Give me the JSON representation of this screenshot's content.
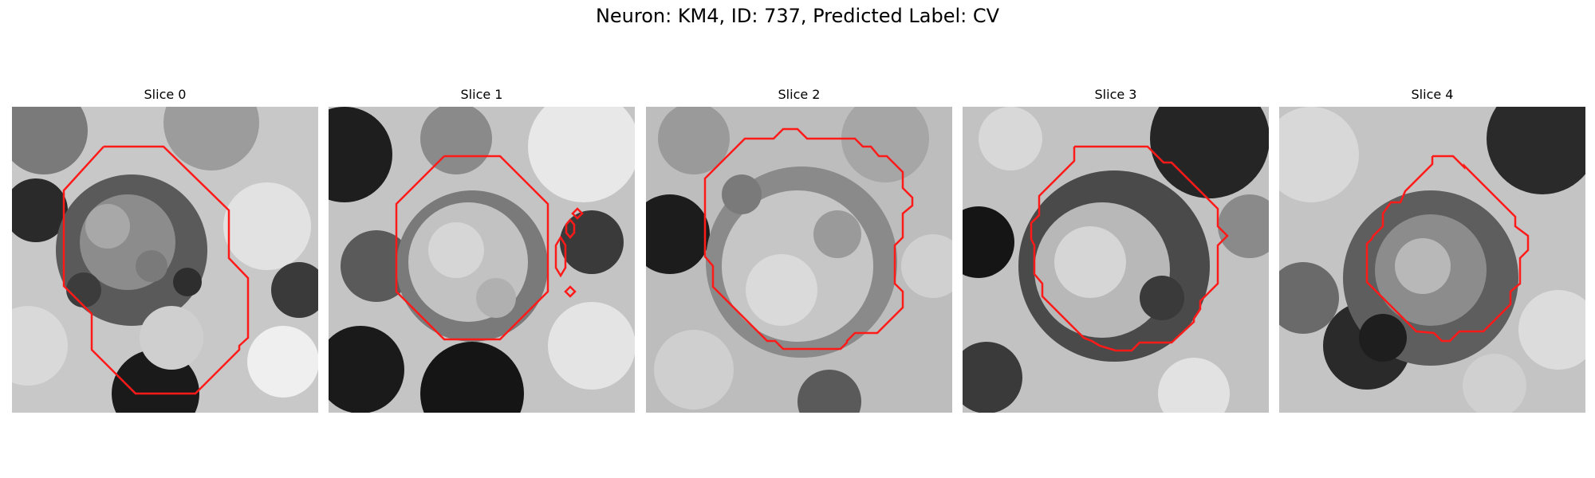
{
  "figure": {
    "title": "Neuron: KM4, ID: 737, Predicted Label: CV"
  },
  "panels": [
    {
      "title": "Slice 0"
    },
    {
      "title": "Slice 1"
    },
    {
      "title": "Slice 2"
    },
    {
      "title": "Slice 3"
    },
    {
      "title": "Slice 4"
    }
  ],
  "contour_color": "#ff1a1a"
}
